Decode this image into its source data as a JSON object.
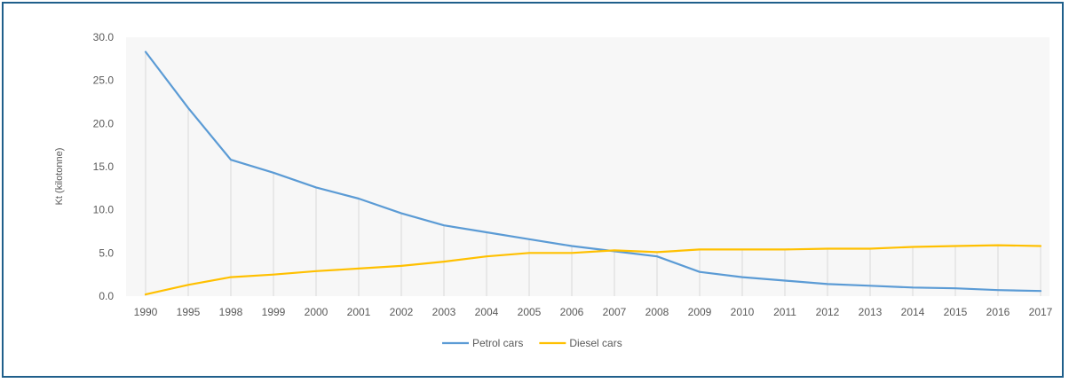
{
  "chart_data": {
    "type": "line",
    "title": "",
    "xlabel": "",
    "ylabel": "Kt (kilotonne)",
    "categories": [
      "1990",
      "1995",
      "1998",
      "1999",
      "2000",
      "2001",
      "2002",
      "2003",
      "2004",
      "2005",
      "2006",
      "2007",
      "2008",
      "2009",
      "2010",
      "2011",
      "2012",
      "2013",
      "2014",
      "2015",
      "2016",
      "2017"
    ],
    "ylim": [
      0,
      30
    ],
    "yticks": [
      "0.0",
      "5.0",
      "10.0",
      "15.0",
      "20.0",
      "25.0",
      "30.0"
    ],
    "grid": "vertical",
    "legend": "bottom",
    "series": [
      {
        "name": "Petrol cars",
        "color": "#5b9bd5",
        "values": [
          28.3,
          21.8,
          15.8,
          14.3,
          12.6,
          11.3,
          9.6,
          8.2,
          7.4,
          6.6,
          5.8,
          5.2,
          4.6,
          2.8,
          2.2,
          1.8,
          1.4,
          1.2,
          1.0,
          0.9,
          0.7,
          0.6
        ]
      },
      {
        "name": "Diesel cars",
        "color": "#ffc000",
        "values": [
          0.2,
          1.3,
          2.2,
          2.5,
          2.9,
          3.2,
          3.5,
          4.0,
          4.6,
          5.0,
          5.0,
          5.3,
          5.1,
          5.4,
          5.4,
          5.4,
          5.5,
          5.5,
          5.7,
          5.8,
          5.9,
          5.8
        ]
      }
    ]
  }
}
